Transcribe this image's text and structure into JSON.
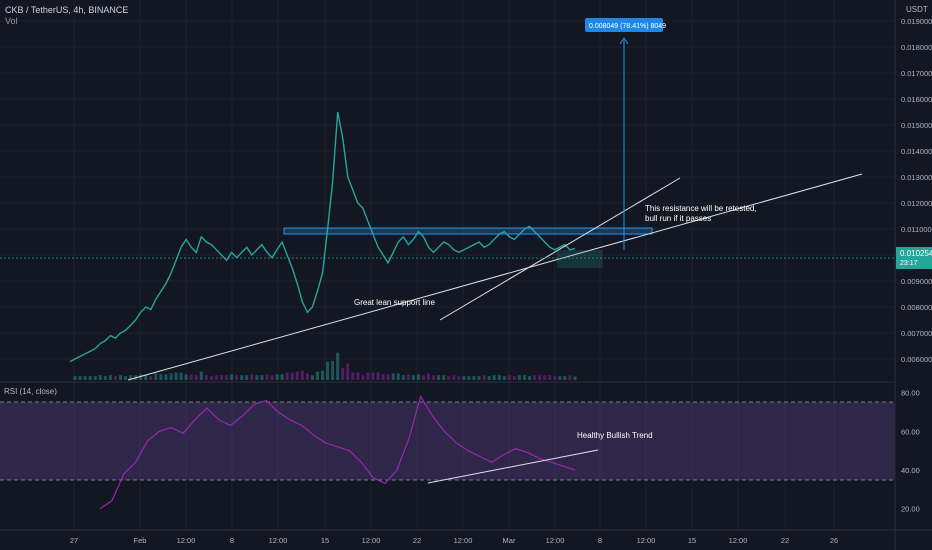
{
  "header": {
    "symbol_line": "CKB / TetherUS, 4h, BINANCE",
    "vol_label": "Vol",
    "rsi_label": "RSI (14, close)",
    "currency": "USDT"
  },
  "colors": {
    "background": "#131722",
    "up": "#26a69a",
    "down": "#9c27b0",
    "rsi_line": "#9c27b0",
    "rsi_fill": "#7e57c2",
    "resistance_box": "#2196f3",
    "price_tag": "#26a69a",
    "target_tag": "#1e88e5"
  },
  "price_axis": {
    "ticks": [
      "0.019000",
      "0.018000",
      "0.017000",
      "0.016000",
      "0.015000",
      "0.014000",
      "0.013000",
      "0.012000",
      "0.011000",
      "0.010000",
      "0.009000",
      "0.008000",
      "0.007000",
      "0.006000"
    ],
    "current_price": "0.010254",
    "countdown": "23:17"
  },
  "rsi_axis": {
    "ticks": [
      "80.00",
      "60.00",
      "40.00",
      "20.00"
    ],
    "upper_band": 70,
    "lower_band": 30
  },
  "time_axis": {
    "labels": [
      "27",
      "Feb",
      "12:00",
      "8",
      "12:00",
      "15",
      "12:00",
      "22",
      "12:00",
      "Mar",
      "12:00",
      "8",
      "12:00",
      "15",
      "12:00",
      "22",
      "26"
    ]
  },
  "annotations": {
    "target_label": "0.008049 (78.41%) 8049",
    "resistance_note_1": "This resistance will be retested,",
    "resistance_note_2": "bull run if it passes",
    "support_note": "Great lean support line",
    "rsi_note": "Healthy Bullish Trend"
  },
  "chart_data": {
    "type": "line",
    "title": "CKB / TetherUS, 4h, BINANCE",
    "price_series": {
      "name": "CKB/USDT close",
      "x": [
        0,
        2,
        4,
        6,
        8,
        10,
        12,
        14,
        16,
        18,
        20,
        22,
        24,
        26,
        28,
        30,
        32,
        34,
        36,
        38,
        40,
        42,
        44,
        46,
        48,
        50,
        52,
        54,
        56,
        58,
        60,
        62,
        64,
        66,
        68,
        70,
        72,
        74,
        76,
        78,
        80,
        82,
        84,
        86,
        88,
        90,
        92,
        94,
        96,
        98,
        100,
        102,
        104,
        106,
        108,
        110,
        112,
        114,
        116,
        118,
        120,
        122,
        124,
        126,
        128,
        130,
        132,
        134,
        136,
        138,
        140,
        142,
        144,
        146,
        148,
        150,
        152,
        154,
        156,
        158,
        160,
        162,
        164,
        166,
        168,
        170,
        172,
        174,
        176,
        178,
        180,
        182,
        184,
        186,
        188,
        190,
        192,
        194,
        196,
        198,
        200
      ],
      "y": [
        0.0059,
        0.006,
        0.0061,
        0.0062,
        0.0063,
        0.0064,
        0.0066,
        0.0067,
        0.0069,
        0.0068,
        0.007,
        0.0071,
        0.0073,
        0.0075,
        0.0078,
        0.008,
        0.0079,
        0.0083,
        0.0086,
        0.0089,
        0.0093,
        0.0098,
        0.0103,
        0.0106,
        0.0103,
        0.0101,
        0.0107,
        0.0105,
        0.0104,
        0.0102,
        0.01,
        0.0098,
        0.0101,
        0.0099,
        0.0101,
        0.0103,
        0.01,
        0.0102,
        0.0104,
        0.0101,
        0.0099,
        0.0102,
        0.0105,
        0.01,
        0.0095,
        0.0089,
        0.0082,
        0.0078,
        0.008,
        0.0086,
        0.0093,
        0.011,
        0.0128,
        0.0155,
        0.0145,
        0.013,
        0.0125,
        0.012,
        0.0118,
        0.0113,
        0.0108,
        0.0103,
        0.01,
        0.0097,
        0.0101,
        0.0105,
        0.0107,
        0.0104,
        0.0106,
        0.0109,
        0.0107,
        0.0103,
        0.0101,
        0.0103,
        0.0105,
        0.0104,
        0.0102,
        0.0101,
        0.0102,
        0.0103,
        0.0104,
        0.0105,
        0.0103,
        0.0104,
        0.0106,
        0.0108,
        0.0109,
        0.0107,
        0.0106,
        0.0108,
        0.011,
        0.0111,
        0.0109,
        0.0107,
        0.0105,
        0.0103,
        0.0102,
        0.0103,
        0.0104,
        0.0102,
        0.01025
      ]
    },
    "rsi_series": {
      "name": "RSI (14, close)",
      "x": [
        0,
        5,
        10,
        15,
        20,
        25,
        30,
        35,
        40,
        45,
        50,
        55,
        60,
        65,
        70,
        75,
        80,
        85,
        90,
        95,
        100,
        105,
        110,
        115,
        120,
        125,
        130,
        135,
        140,
        145,
        150,
        155,
        160,
        165,
        170,
        175,
        180,
        185,
        190,
        195,
        200
      ],
      "y": [
        20,
        24,
        38,
        44,
        55,
        60,
        62,
        59,
        66,
        72,
        66,
        63,
        68,
        74,
        76,
        70,
        66,
        63,
        58,
        54,
        52,
        50,
        44,
        36,
        33,
        40,
        56,
        78,
        68,
        60,
        54,
        50,
        47,
        44,
        48,
        51,
        49,
        46,
        44,
        42,
        40
      ]
    },
    "ylim": [
      0.0055,
      0.0195
    ],
    "rsi_ylim": [
      10,
      85
    ]
  }
}
